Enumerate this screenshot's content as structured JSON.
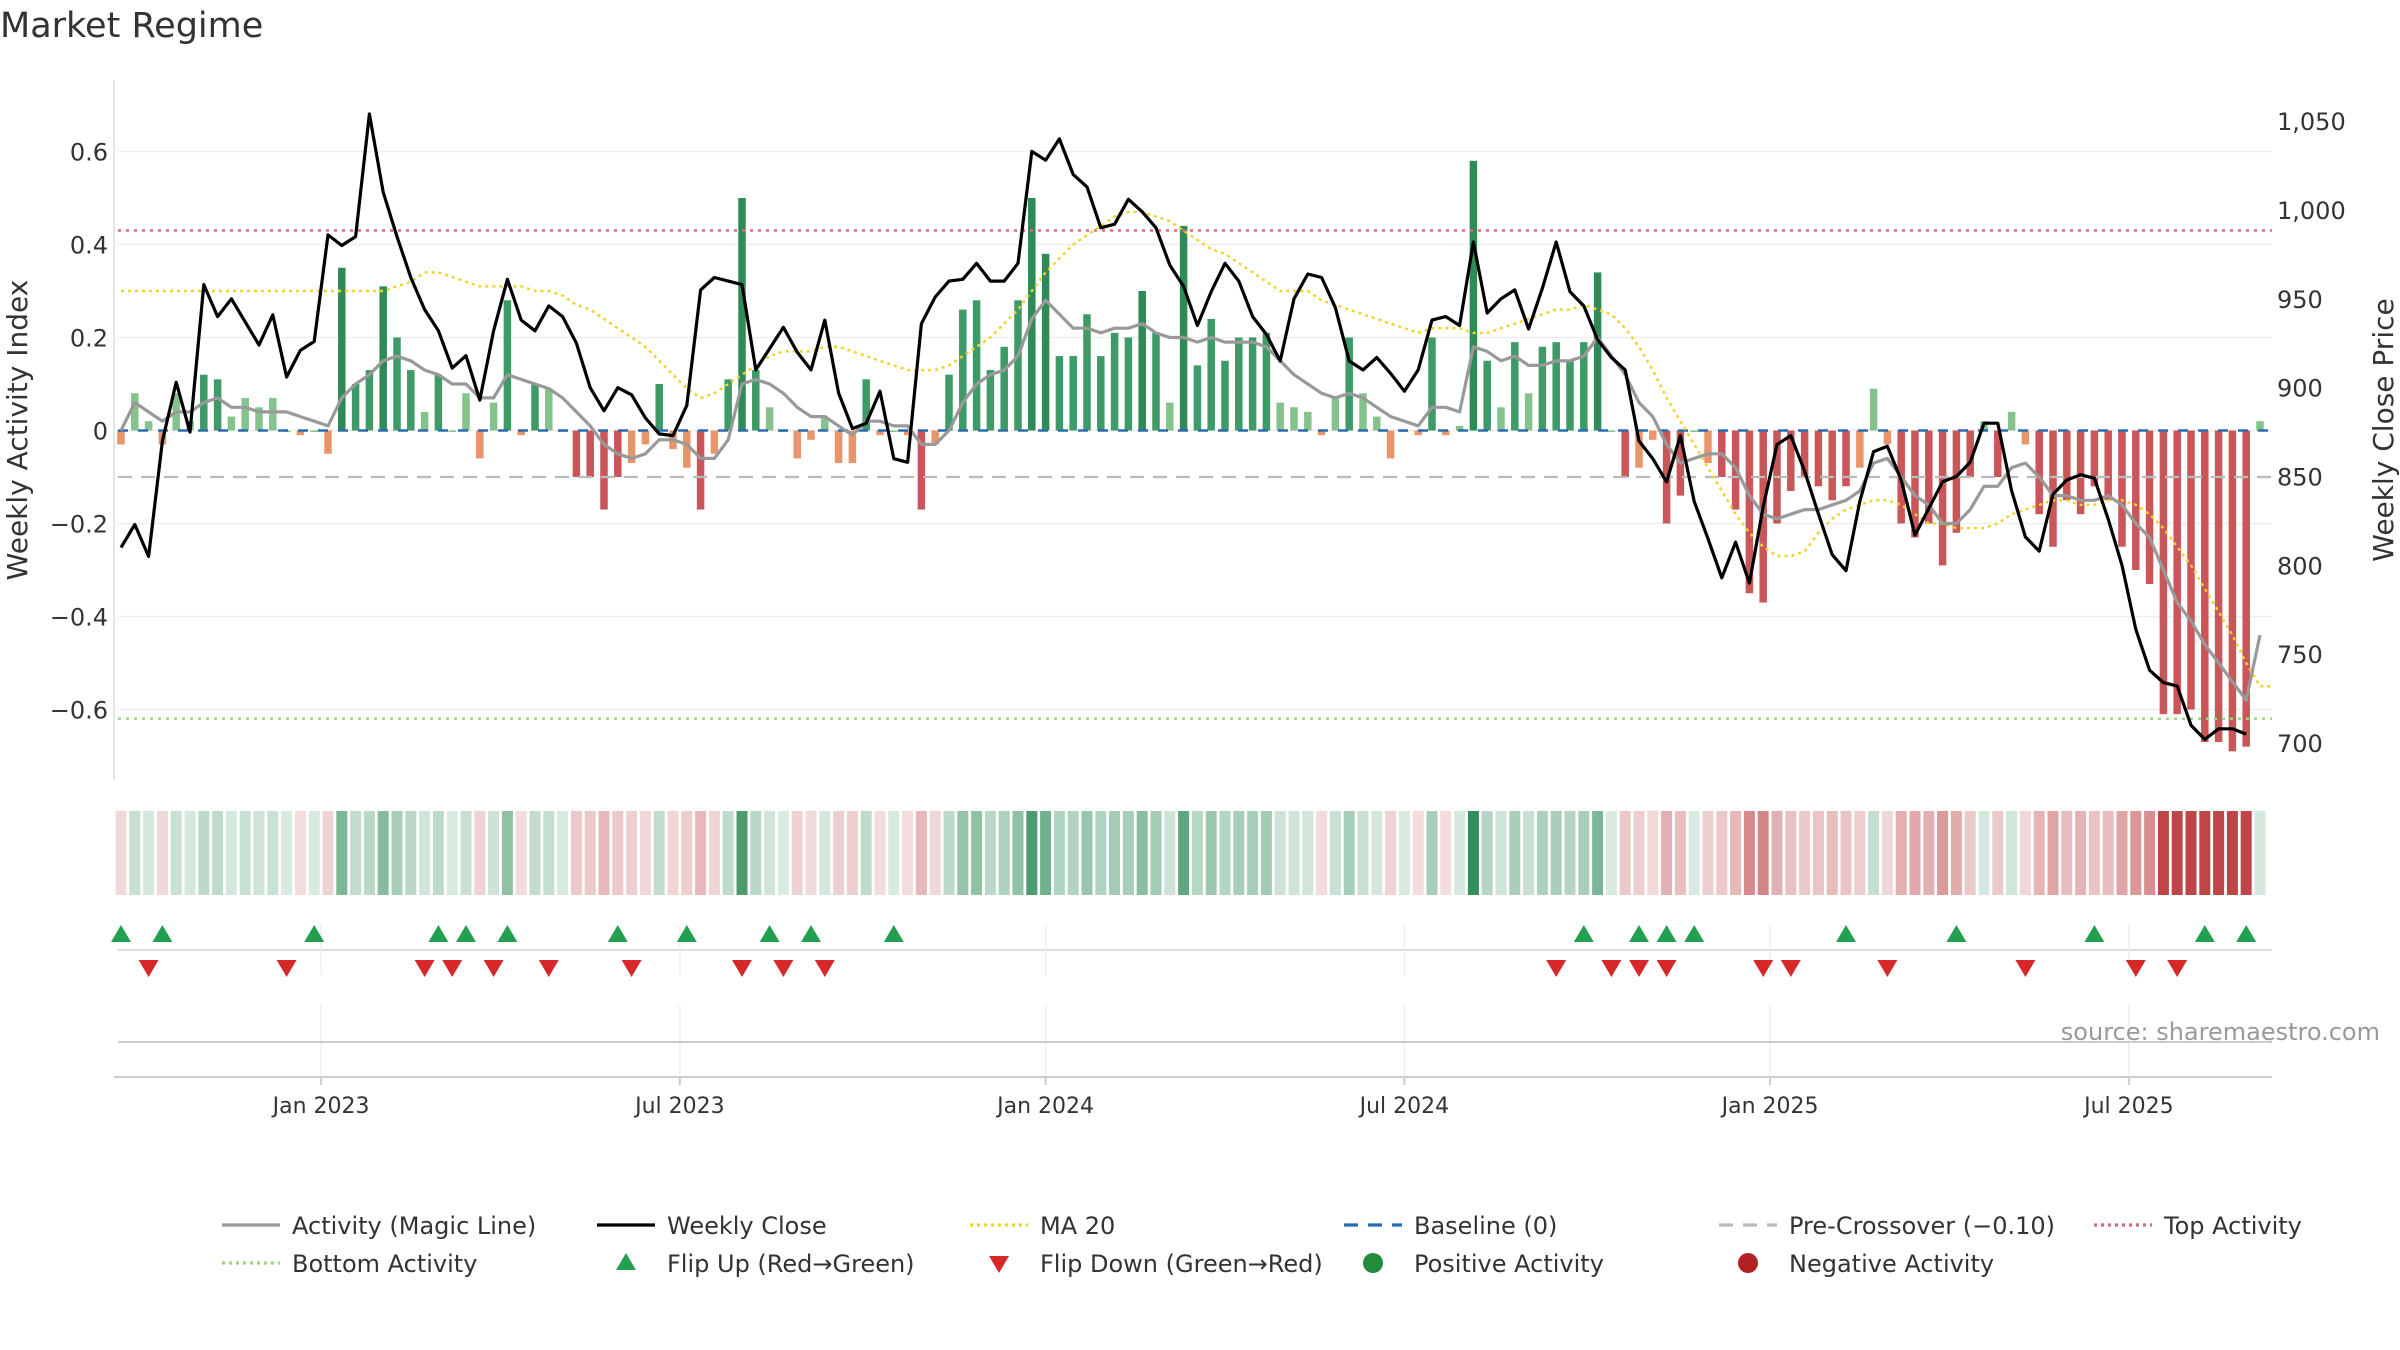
{
  "chart_data": {
    "type": "bar",
    "title": "Market Regime",
    "ylabel_left": "Weekly Activity Index",
    "ylabel_right": "Weekly Close Price",
    "ylim_left": [
      -0.75,
      0.75
    ],
    "ylim_right": [
      685,
      1070
    ],
    "yticks_left": [
      -0.6,
      -0.4,
      -0.2,
      0,
      0.2,
      0.4,
      0.6
    ],
    "yticks_left_labels": [
      "−0.6",
      "−0.4",
      "−0.2",
      "0",
      "0.2",
      "0.4",
      "0.6"
    ],
    "yticks_right": [
      700,
      750,
      800,
      850,
      900,
      950,
      1000,
      1050
    ],
    "yticks_right_labels": [
      "700",
      "750",
      "800",
      "850",
      "900",
      "950",
      "1,000",
      "1,050"
    ],
    "xticks": [
      {
        "label": "Jan 2023",
        "week": 14.5
      },
      {
        "label": "Jul 2023",
        "week": 40.5
      },
      {
        "label": "Jan 2024",
        "week": 67
      },
      {
        "label": "Jul 2024",
        "week": 93
      },
      {
        "label": "Jan 2025",
        "week": 119.5
      },
      {
        "label": "Jul 2025",
        "week": 145.5
      }
    ],
    "top_activity": 0.43,
    "bottom_activity": -0.62,
    "pre_crossover": -0.1,
    "baseline": 0,
    "activity": [
      -0.03,
      0.08,
      0.02,
      -0.03,
      0.08,
      0.02,
      0.12,
      0.11,
      0.03,
      0.07,
      0.05,
      0.07,
      0.0,
      -0.01,
      0.0,
      -0.05,
      0.35,
      0.1,
      0.13,
      0.31,
      0.2,
      0.13,
      0.04,
      0.12,
      0.0,
      0.08,
      -0.06,
      0.06,
      0.28,
      -0.01,
      0.1,
      0.09,
      0.0,
      -0.1,
      -0.1,
      -0.17,
      -0.1,
      -0.07,
      -0.03,
      0.1,
      -0.04,
      -0.08,
      -0.17,
      -0.05,
      0.11,
      0.5,
      0.13,
      0.05,
      0.0,
      -0.06,
      -0.02,
      0.03,
      -0.07,
      -0.07,
      0.11,
      -0.01,
      0.0,
      -0.01,
      -0.17,
      -0.03,
      0.12,
      0.26,
      0.28,
      0.13,
      0.18,
      0.28,
      0.5,
      0.38,
      0.16,
      0.16,
      0.25,
      0.16,
      0.21,
      0.2,
      0.3,
      0.21,
      0.06,
      0.44,
      0.14,
      0.24,
      0.15,
      0.2,
      0.2,
      0.21,
      0.06,
      0.05,
      0.04,
      -0.01,
      0.07,
      0.2,
      0.08,
      0.03,
      -0.06,
      0.0,
      -0.01,
      0.2,
      -0.01,
      0.01,
      0.58,
      0.15,
      0.05,
      0.19,
      0.08,
      0.18,
      0.19,
      0.15,
      0.19,
      0.34,
      0.0,
      -0.1,
      -0.08,
      -0.02,
      -0.2,
      -0.14,
      0.0,
      -0.07,
      -0.1,
      -0.17,
      -0.35,
      -0.37,
      -0.2,
      -0.13,
      -0.1,
      -0.12,
      -0.15,
      -0.12,
      -0.08,
      0.09,
      -0.03,
      -0.2,
      -0.23,
      -0.2,
      -0.29,
      -0.22,
      -0.1,
      0.02,
      -0.1,
      0.04,
      -0.03,
      -0.18,
      -0.25,
      -0.15,
      -0.18,
      -0.12,
      -0.15,
      -0.25,
      -0.3,
      -0.33,
      -0.61,
      -0.61,
      -0.6,
      -0.67,
      -0.67,
      -0.69,
      -0.68,
      0.02
    ],
    "magic_line": [
      0.0,
      0.06,
      0.04,
      0.02,
      0.04,
      0.04,
      0.06,
      0.07,
      0.05,
      0.05,
      0.04,
      0.04,
      0.04,
      0.03,
      0.02,
      0.01,
      0.07,
      0.1,
      0.12,
      0.15,
      0.16,
      0.15,
      0.13,
      0.12,
      0.1,
      0.1,
      0.07,
      0.07,
      0.12,
      0.11,
      0.1,
      0.09,
      0.07,
      0.04,
      0.01,
      -0.03,
      -0.05,
      -0.06,
      -0.05,
      -0.02,
      -0.02,
      -0.03,
      -0.06,
      -0.06,
      -0.02,
      0.1,
      0.11,
      0.1,
      0.08,
      0.05,
      0.03,
      0.03,
      0.01,
      -0.01,
      0.02,
      0.02,
      0.01,
      0.01,
      -0.03,
      -0.03,
      0.0,
      0.06,
      0.1,
      0.12,
      0.13,
      0.16,
      0.24,
      0.28,
      0.25,
      0.22,
      0.22,
      0.21,
      0.22,
      0.22,
      0.23,
      0.21,
      0.2,
      0.2,
      0.19,
      0.2,
      0.19,
      0.19,
      0.19,
      0.18,
      0.15,
      0.12,
      0.1,
      0.08,
      0.07,
      0.08,
      0.07,
      0.05,
      0.03,
      0.02,
      0.01,
      0.05,
      0.05,
      0.04,
      0.18,
      0.17,
      0.15,
      0.16,
      0.14,
      0.14,
      0.15,
      0.15,
      0.16,
      0.2,
      0.16,
      0.12,
      0.06,
      0.03,
      -0.03,
      -0.07,
      -0.06,
      -0.05,
      -0.05,
      -0.08,
      -0.14,
      -0.18,
      -0.19,
      -0.18,
      -0.17,
      -0.17,
      -0.16,
      -0.15,
      -0.13,
      -0.07,
      -0.06,
      -0.1,
      -0.14,
      -0.16,
      -0.2,
      -0.2,
      -0.17,
      -0.12,
      -0.12,
      -0.08,
      -0.07,
      -0.1,
      -0.14,
      -0.14,
      -0.15,
      -0.15,
      -0.14,
      -0.16,
      -0.2,
      -0.23,
      -0.3,
      -0.37,
      -0.41,
      -0.46,
      -0.5,
      -0.54,
      -0.58,
      -0.44
    ],
    "weekly_close": [
      810,
      823,
      805,
      870,
      903,
      875,
      958,
      940,
      950,
      937,
      924,
      941,
      906,
      921,
      926,
      986,
      980,
      985,
      1054,
      1010,
      985,
      962,
      944,
      932,
      911,
      918,
      893,
      932,
      961,
      938,
      932,
      946,
      940,
      925,
      900,
      887,
      900,
      896,
      883,
      874,
      873,
      890,
      955,
      962,
      960,
      958,
      910,
      922,
      934,
      920,
      910,
      938,
      897,
      877,
      880,
      898,
      860,
      858,
      936,
      951,
      960,
      961,
      970,
      960,
      960,
      970,
      1033,
      1028,
      1040,
      1020,
      1013,
      990,
      992,
      1006,
      999,
      990,
      969,
      957,
      935,
      954,
      970,
      960,
      940,
      930,
      915,
      950,
      964,
      962,
      945,
      915,
      910,
      917,
      908,
      898,
      910,
      938,
      940,
      935,
      982,
      942,
      950,
      955,
      933,
      956,
      982,
      954,
      946,
      927,
      917,
      910,
      870,
      860,
      847,
      873,
      836,
      815,
      793,
      813,
      790,
      833,
      868,
      873,
      853,
      829,
      806,
      797,
      836,
      864,
      867,
      848,
      817,
      832,
      847,
      850,
      858,
      880,
      880,
      842,
      816,
      808,
      840,
      848,
      851,
      849,
      826,
      800,
      764,
      741,
      734,
      732,
      710,
      702,
      708,
      708,
      705
    ],
    "ma20": [
      0.3,
      0.3,
      0.3,
      0.3,
      0.3,
      0.3,
      0.3,
      0.3,
      0.3,
      0.3,
      0.3,
      0.3,
      0.3,
      0.3,
      0.3,
      0.3,
      0.3,
      0.3,
      0.3,
      0.3,
      0.31,
      0.32,
      0.34,
      0.34,
      0.33,
      0.32,
      0.31,
      0.31,
      0.31,
      0.31,
      0.3,
      0.3,
      0.29,
      0.27,
      0.26,
      0.24,
      0.22,
      0.2,
      0.18,
      0.15,
      0.12,
      0.09,
      0.07,
      0.08,
      0.1,
      0.12,
      0.14,
      0.16,
      0.17,
      0.17,
      0.17,
      0.18,
      0.18,
      0.17,
      0.16,
      0.15,
      0.14,
      0.13,
      0.13,
      0.13,
      0.14,
      0.16,
      0.18,
      0.2,
      0.23,
      0.26,
      0.3,
      0.34,
      0.37,
      0.4,
      0.42,
      0.44,
      0.46,
      0.47,
      0.47,
      0.46,
      0.45,
      0.43,
      0.41,
      0.39,
      0.38,
      0.36,
      0.34,
      0.32,
      0.3,
      0.3,
      0.3,
      0.28,
      0.27,
      0.26,
      0.25,
      0.24,
      0.23,
      0.22,
      0.21,
      0.22,
      0.22,
      0.22,
      0.21,
      0.21,
      0.22,
      0.23,
      0.24,
      0.25,
      0.26,
      0.26,
      0.27,
      0.26,
      0.25,
      0.22,
      0.18,
      0.13,
      0.07,
      0.02,
      -0.03,
      -0.08,
      -0.13,
      -0.18,
      -0.22,
      -0.25,
      -0.27,
      -0.27,
      -0.26,
      -0.22,
      -0.19,
      -0.17,
      -0.16,
      -0.15,
      -0.15,
      -0.16,
      -0.18,
      -0.2,
      -0.2,
      -0.21,
      -0.21,
      -0.21,
      -0.2,
      -0.18,
      -0.17,
      -0.16,
      -0.15,
      -0.15,
      -0.16,
      -0.16,
      -0.15,
      -0.15,
      -0.16,
      -0.18,
      -0.21,
      -0.25,
      -0.29,
      -0.34,
      -0.39,
      -0.44,
      -0.5,
      -0.55,
      -0.55
    ],
    "flip_up_weeks": [
      0,
      3,
      14,
      23,
      25,
      28,
      36,
      41,
      47,
      50,
      56,
      106,
      110,
      112,
      114,
      125,
      133,
      143,
      151,
      154
    ],
    "flip_down_weeks": [
      2,
      12,
      22,
      24,
      27,
      31,
      37,
      45,
      48,
      51,
      104,
      108,
      110,
      112,
      119,
      121,
      128,
      138,
      146,
      149
    ],
    "source_note": "source: sharemaestro.com",
    "legend": [
      {
        "label": "Activity (Magic Line)",
        "symbol": "line",
        "color": "#999999",
        "dash": ""
      },
      {
        "label": "Weekly Close",
        "symbol": "line",
        "color": "#000000",
        "dash": ""
      },
      {
        "label": "MA 20",
        "symbol": "line",
        "color": "#f2d22e",
        "dash": "dotted"
      },
      {
        "label": "Baseline (0)",
        "symbol": "line",
        "color": "#2b6cb0",
        "dash": "dashed"
      },
      {
        "label": "Pre-Crossover (−0.10)",
        "symbol": "line",
        "color": "#bbbbbb",
        "dash": "dashed"
      },
      {
        "label": "Top Activity",
        "symbol": "line",
        "color": "#d46a7e",
        "dash": "dotted"
      },
      {
        "label": "Bottom Activity",
        "symbol": "line",
        "color": "#9fd67f",
        "dash": "dotted"
      },
      {
        "label": "Flip Up (Red→Green)",
        "symbol": "triangle-up",
        "color": "#22a050",
        "dash": ""
      },
      {
        "label": "Flip Down (Green→Red)",
        "symbol": "triangle-down",
        "color": "#d62828",
        "dash": ""
      },
      {
        "label": "Positive Activity",
        "symbol": "circle",
        "color": "#228b3c",
        "dash": ""
      },
      {
        "label": "Negative Activity",
        "symbol": "circle",
        "color": "#b22222",
        "dash": ""
      }
    ]
  }
}
